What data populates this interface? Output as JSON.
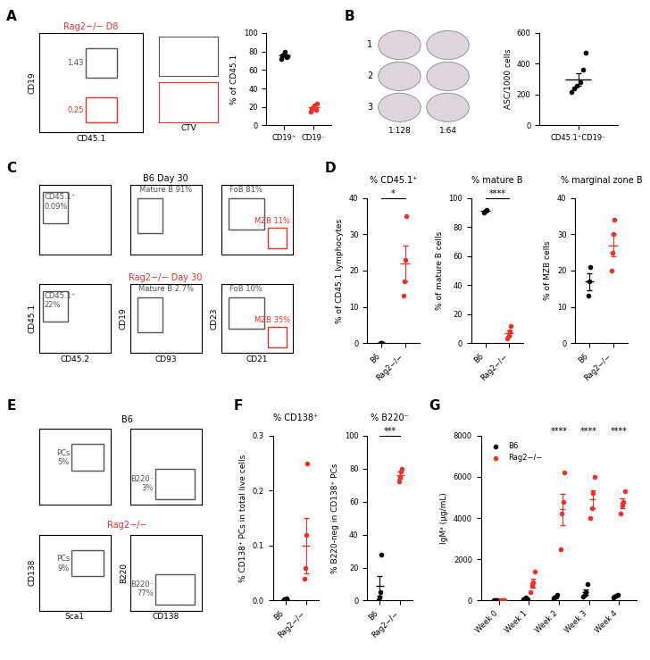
{
  "panel_labels": [
    "A",
    "B",
    "C",
    "D",
    "E",
    "F",
    "G"
  ],
  "flow_plots": {
    "A": {
      "title": "Rag2−/− D8",
      "title_color": "#e8322b",
      "xlabel": "CD45.1",
      "ylabel": "CD19",
      "gates": [
        {
          "label": "1.43",
          "color": "#555555"
        },
        {
          "label": "0.25",
          "color": "#e8322b"
        }
      ],
      "histogram_xlabel": "CTV"
    },
    "C": [
      {
        "title": "B6 Day 30",
        "title_color": "#000000",
        "plots": [
          {
            "gates": [
              {
                "label": "CD45.1⁺\n0.09%",
                "color": "#555555"
              }
            ]
          },
          {
            "gates": [
              {
                "label": "Mature B 91%",
                "color": "#555555"
              }
            ]
          },
          {
            "gates": [
              {
                "label": "FoB 81%",
                "color": "#555555"
              },
              {
                "label": "MZB 11%",
                "color": "#e8322b"
              }
            ]
          }
        ]
      },
      {
        "title": "Rag2−/− Day 30",
        "title_color": "#e8322b",
        "plots": [
          {
            "xlabel": "CD45.2",
            "ylabel": "CD45.1",
            "gates": [
              {
                "label": "CD45.1⁺\n22%",
                "color": "#555555"
              }
            ]
          },
          {
            "xlabel": "CD93",
            "ylabel": "CD19",
            "gates": [
              {
                "label": "Mature B 2.7%",
                "color": "#555555"
              }
            ]
          },
          {
            "xlabel": "CD21",
            "ylabel": "CD23",
            "gates": [
              {
                "label": "FoB 10%",
                "color": "#555555"
              },
              {
                "label": "MZB 35%",
                "color": "#e8322b"
              }
            ]
          }
        ]
      }
    ],
    "E": [
      {
        "title": "B6",
        "title_color": "#000000",
        "plots": [
          {
            "gates": [
              {
                "label": "PCs\n5%",
                "color": "#555555"
              }
            ]
          },
          {
            "gates": [
              {
                "label": "B220⁻\n3%",
                "color": "#555555"
              }
            ]
          }
        ]
      },
      {
        "title": "Rag2−/−",
        "title_color": "#e8322b",
        "plots": [
          {
            "xlabel": "Sca1",
            "ylabel": "CD138",
            "gates": [
              {
                "label": "PCs\n9%",
                "color": "#555555"
              }
            ]
          },
          {
            "xlabel": "CD138",
            "ylabel": "B220",
            "gates": [
              {
                "label": "B220⁻\n77%",
                "color": "#555555"
              }
            ]
          }
        ]
      }
    ]
  },
  "elispot": {
    "rows": [
      "1",
      "2",
      "3"
    ],
    "dilutions": [
      "1:128",
      "1:64"
    ]
  },
  "chart_data": [
    {
      "type": "scatter",
      "categories": [
        "CD19⁺",
        "CD19⁻"
      ],
      "ylabel": "% of CD45.1",
      "ylim": [
        0,
        100
      ],
      "yticks": [
        0,
        20,
        40,
        60,
        80,
        100
      ],
      "colors": [
        "#000000",
        "#e8322b"
      ],
      "values": [
        [
          72,
          76,
          77,
          80,
          74,
          75
        ],
        [
          15,
          18,
          20,
          22,
          17,
          24
        ]
      ],
      "mean": [
        75.7,
        19.3
      ],
      "error": [
        1.1,
        1.4
      ]
    },
    {
      "type": "scatter",
      "categories": [
        "CD45.1⁺CD19⁻"
      ],
      "ylabel": "ASC/1000 cells",
      "ylim": [
        0,
        600
      ],
      "yticks": [
        0,
        200,
        400,
        600
      ],
      "colors": [
        "#000000"
      ],
      "values": [
        [
          215,
          240,
          255,
          280,
          360,
          470
        ]
      ],
      "mean": [
        300
      ],
      "error": [
        40
      ]
    },
    {
      "type": "scatter",
      "title": "% CD45.1⁺",
      "categories": [
        "B6",
        "Rag2−/−"
      ],
      "ylabel": "% of CD45.1 lymphocytes",
      "ylim": [
        0,
        40
      ],
      "yticks": [
        0,
        10,
        20,
        30,
        40
      ],
      "colors": [
        "#000000",
        "#e8322b"
      ],
      "values": [
        [
          0.1,
          0.1,
          0.1
        ],
        [
          13,
          17,
          23,
          35
        ]
      ],
      "mean": [
        0.1,
        22
      ],
      "error": [
        0,
        5
      ],
      "significance": "*"
    },
    {
      "type": "scatter",
      "title": "% mature B",
      "categories": [
        "B6",
        "Rag2−/−"
      ],
      "ylabel": "% of mature B cells",
      "ylim": [
        0,
        100
      ],
      "yticks": [
        0,
        20,
        40,
        60,
        80,
        100
      ],
      "colors": [
        "#000000",
        "#e8322b"
      ],
      "values": [
        [
          90,
          91,
          92
        ],
        [
          3,
          5,
          8,
          12
        ]
      ],
      "mean": [
        91,
        7
      ],
      "error": [
        0.6,
        2
      ],
      "significance": "****"
    },
    {
      "type": "scatter",
      "title": "% marginal zone B",
      "categories": [
        "B6",
        "Rag2−/−"
      ],
      "ylabel": "% of MZB cells",
      "ylim": [
        0,
        40
      ],
      "yticks": [
        0,
        10,
        20,
        30,
        40
      ],
      "colors": [
        "#000000",
        "#e8322b"
      ],
      "values": [
        [
          13,
          17,
          21
        ],
        [
          20,
          25,
          30,
          34
        ]
      ],
      "mean": [
        17,
        27
      ],
      "error": [
        2.3,
        3
      ]
    },
    {
      "type": "scatter",
      "title": "% CD138⁺",
      "categories": [
        "B6",
        "Rag2−/−"
      ],
      "ylabel": "% CD138⁺ PCs in total live cells",
      "ylim": [
        0,
        0.3
      ],
      "yticks": [
        {
          "value": 0,
          "label": "0.0"
        },
        0.1,
        0.2,
        0.3
      ],
      "colors": [
        "#000000",
        "#e8322b"
      ],
      "values": [
        [
          0.002,
          0.003,
          0.003,
          0.004
        ],
        [
          0.04,
          0.06,
          0.12,
          0.25
        ]
      ],
      "mean": [
        0.003,
        0.1
      ],
      "error": [
        0.0005,
        0.05
      ]
    },
    {
      "type": "scatter",
      "title": "% B220⁻",
      "categories": [
        "B6",
        "Rag2−/−"
      ],
      "ylabel": "% B220-neg in CD138⁺ PCs",
      "ylim": [
        0,
        100
      ],
      "yticks": [
        0,
        20,
        40,
        60,
        80,
        100
      ],
      "colors": [
        "#000000",
        "#e8322b"
      ],
      "values": [
        [
          0,
          2,
          5,
          28
        ],
        [
          72,
          75,
          78,
          80
        ]
      ],
      "mean": [
        9,
        76
      ],
      "error": [
        6,
        2
      ],
      "significance": "***"
    },
    {
      "type": "scatter",
      "categories": [
        "Week 0",
        "Week 1",
        "Week 2",
        "Week 3",
        "Week 4"
      ],
      "ylabel": "IgMᵃ (μg/mL)",
      "ylim": [
        0,
        8000
      ],
      "yticks": [
        0,
        2000,
        4000,
        6000,
        8000
      ],
      "legend": "upper left",
      "series": [
        {
          "name": "B6",
          "color": "#000000",
          "values": [
            [
              10,
              15,
              20,
              10
            ],
            [
              50,
              100,
              150,
              80
            ],
            [
              100,
              150,
              200,
              300
            ],
            [
              200,
              300,
              400,
              800
            ],
            [
              150,
              200,
              250,
              300
            ]
          ],
          "mean": [
            14,
            95,
            188,
            425,
            225
          ],
          "error": [
            3,
            20,
            40,
            130,
            30
          ]
        },
        {
          "name": "Rag2−/−",
          "color": "#e8322b",
          "values": [
            [
              20,
              30,
              40,
              30
            ],
            [
              400,
              700,
              900,
              1400
            ],
            [
              2500,
              4200,
              4800,
              6200
            ],
            [
              4000,
              4500,
              5200,
              6000
            ],
            [
              4200,
              4600,
              4800,
              5300
            ]
          ],
          "mean": [
            30,
            850,
            4425,
            4925,
            4725
          ],
          "error": [
            4,
            210,
            770,
            440,
            230
          ]
        }
      ],
      "significance": [
        null,
        null,
        "****",
        "****",
        "****"
      ]
    }
  ]
}
